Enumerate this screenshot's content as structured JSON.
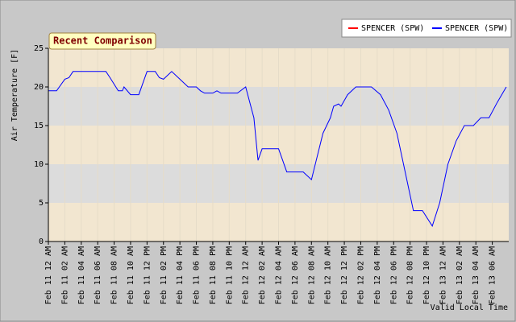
{
  "chart_data": {
    "type": "line",
    "title": "Recent Comparison",
    "ylabel": "Air Temperature [F]",
    "xlabel": "Valid Local Time",
    "xlim": [
      0,
      56
    ],
    "ylim": [
      0,
      25
    ],
    "yticks": [
      0,
      5,
      10,
      15,
      20,
      25
    ],
    "xticks": [
      {
        "value": 0,
        "label": "Feb 11 12 AM"
      },
      {
        "value": 2,
        "label": "Feb 11 02 AM"
      },
      {
        "value": 4,
        "label": "Feb 11 04 AM"
      },
      {
        "value": 6,
        "label": "Feb 11 06 AM"
      },
      {
        "value": 8,
        "label": "Feb 11 08 AM"
      },
      {
        "value": 10,
        "label": "Feb 11 10 AM"
      },
      {
        "value": 12,
        "label": "Feb 11 12 PM"
      },
      {
        "value": 14,
        "label": "Feb 11 02 PM"
      },
      {
        "value": 16,
        "label": "Feb 11 04 PM"
      },
      {
        "value": 18,
        "label": "Feb 11 06 PM"
      },
      {
        "value": 20,
        "label": "Feb 11 08 PM"
      },
      {
        "value": 22,
        "label": "Feb 11 10 PM"
      },
      {
        "value": 24,
        "label": "Feb 12 12 AM"
      },
      {
        "value": 26,
        "label": "Feb 12 02 AM"
      },
      {
        "value": 28,
        "label": "Feb 12 04 AM"
      },
      {
        "value": 30,
        "label": "Feb 12 06 AM"
      },
      {
        "value": 32,
        "label": "Feb 12 08 AM"
      },
      {
        "value": 34,
        "label": "Feb 12 10 AM"
      },
      {
        "value": 36,
        "label": "Feb 12 12 PM"
      },
      {
        "value": 38,
        "label": "Feb 12 02 PM"
      },
      {
        "value": 40,
        "label": "Feb 12 04 PM"
      },
      {
        "value": 42,
        "label": "Feb 12 06 PM"
      },
      {
        "value": 44,
        "label": "Feb 12 08 PM"
      },
      {
        "value": 46,
        "label": "Feb 12 10 PM"
      },
      {
        "value": 48,
        "label": "Feb 13 12 AM"
      },
      {
        "value": 50,
        "label": "Feb 13 02 AM"
      },
      {
        "value": 52,
        "label": "Feb 13 04 AM"
      },
      {
        "value": 54,
        "label": "Feb 13 06 AM"
      }
    ],
    "grid": true,
    "legend": "top-right",
    "bands": [
      "#f2e6d0",
      "#dcdcdc"
    ],
    "x": [
      0,
      0.6,
      1,
      2,
      2.5,
      3,
      7,
      7.5,
      8.5,
      9,
      9.2,
      10,
      11,
      12,
      13,
      13.5,
      14,
      15,
      16,
      17,
      18,
      18.5,
      19,
      20,
      20.5,
      21,
      23,
      24,
      25,
      25.5,
      26,
      28,
      29,
      31,
      32,
      33.4,
      34.3,
      34.7,
      35.3,
      35.6,
      36.4,
      37.4,
      39.3,
      40.4,
      41.4,
      42.4,
      43.4,
      44.4,
      45.5,
      46.7,
      47.6,
      48.6,
      49.6,
      50.6,
      51.7,
      52.6,
      53.6,
      54.6,
      55.7
    ],
    "series": [
      {
        "name": "SPENCER (SPW)",
        "color": "#ff0000",
        "values": [
          null,
          null,
          null,
          null,
          null,
          null,
          null,
          null,
          null,
          null,
          null,
          null,
          null,
          null,
          null,
          null,
          null,
          null,
          null,
          null,
          null,
          null,
          null,
          null,
          null,
          null,
          null,
          null,
          null,
          null,
          null,
          null,
          null,
          null,
          null,
          null,
          null,
          null,
          null,
          null,
          null,
          null,
          null,
          null,
          null,
          null,
          null,
          null,
          null,
          null,
          null,
          null,
          null,
          null,
          null,
          null,
          null,
          null,
          null
        ]
      },
      {
        "name": "SPENCER (SPW)",
        "color": "#0000ff",
        "values": [
          19.5,
          19.5,
          19.5,
          21,
          21.2,
          22,
          22,
          21.2,
          19.5,
          19.5,
          20,
          19,
          19,
          22,
          22,
          21.2,
          21,
          22,
          21,
          20,
          20,
          19.5,
          19.2,
          19.2,
          19.5,
          19.2,
          19.2,
          20,
          16,
          10.5,
          12,
          12,
          9,
          9,
          8,
          14,
          16,
          17.5,
          17.8,
          17.5,
          19,
          20,
          20,
          19,
          17,
          14,
          9,
          4,
          4,
          2,
          5,
          10,
          13,
          15,
          15,
          16,
          16,
          18,
          20
        ]
      }
    ]
  }
}
